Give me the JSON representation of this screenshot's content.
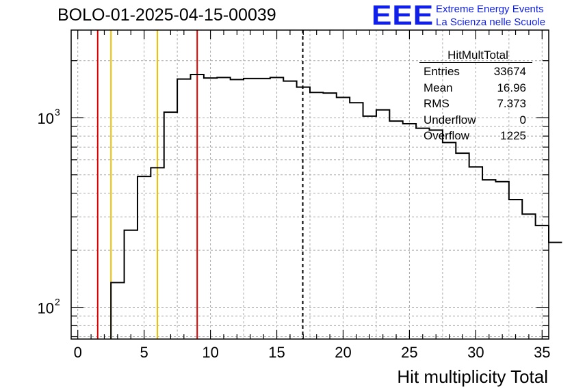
{
  "title": "BOLO-01-2025-04-15-00039",
  "logo": {
    "mark": "EEE",
    "line1": "Extreme Energy Events",
    "line2": "La Scienza nelle Scuole",
    "color": "#1020e8"
  },
  "stats": {
    "title": "HitMultTotal",
    "rows": [
      {
        "label": "Entries",
        "value": "33674"
      },
      {
        "label": "Mean",
        "value": "16.96"
      },
      {
        "label": "RMS",
        "value": "7.373"
      },
      {
        "label": "Underflow",
        "value": "0"
      },
      {
        "label": "Overflow",
        "value": "1225"
      }
    ]
  },
  "chart_data": {
    "type": "histogram",
    "title": "BOLO-01-2025-04-15-00039",
    "xlabel": "Hit multiplicity Total",
    "ylabel": "",
    "yscale": "log",
    "xlim": [
      -0.5,
      35.5
    ],
    "ylim": [
      68,
      2900
    ],
    "x_ticks": [
      0,
      5,
      10,
      15,
      20,
      25,
      30,
      35
    ],
    "y_tick_labels": [
      {
        "value": 100,
        "base": "10",
        "exp": "2"
      },
      {
        "value": 1000,
        "base": "10",
        "exp": "3"
      }
    ],
    "bin_edges_start": -0.5,
    "bin_width": 1,
    "counts": [
      0,
      0,
      0,
      135,
      255,
      490,
      545,
      1070,
      1600,
      1690,
      1620,
      1630,
      1590,
      1610,
      1610,
      1630,
      1560,
      1450,
      1360,
      1350,
      1280,
      1200,
      1020,
      1100,
      960,
      930,
      880,
      860,
      740,
      650,
      550,
      470,
      460,
      370,
      310,
      270,
      220
    ],
    "grid": true,
    "vertical_lines": [
      {
        "x": 1.5,
        "color": "#e00000",
        "style": "solid"
      },
      {
        "x": 2.5,
        "color": "#f0c000",
        "style": "solid"
      },
      {
        "x": 6.0,
        "color": "#f0c000",
        "style": "solid"
      },
      {
        "x": 9.0,
        "color": "#e00000",
        "style": "solid"
      },
      {
        "x": 16.96,
        "color": "#000000",
        "style": "dashed"
      }
    ]
  }
}
